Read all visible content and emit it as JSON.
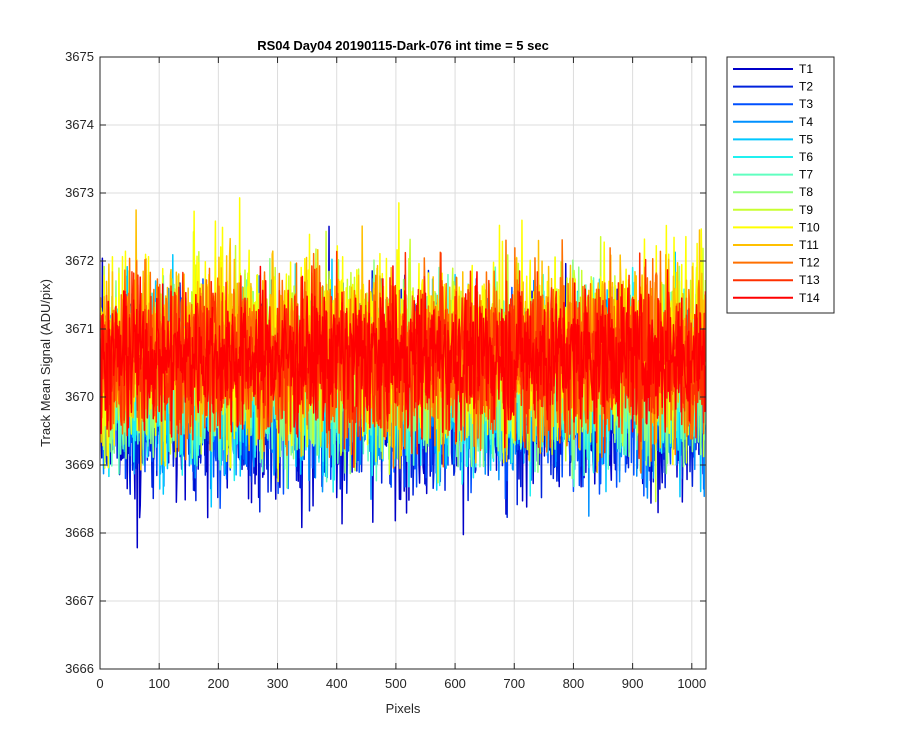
{
  "chart_data": {
    "type": "line",
    "title": "RS04 Day04 20190115-Dark-076 int time = 5 sec",
    "xlabel": "Pixels",
    "ylabel": "Track Mean Signal (ADU/pix)",
    "xlim": [
      0,
      1024
    ],
    "ylim": [
      3666,
      3675
    ],
    "xticks": [
      0,
      100,
      200,
      300,
      400,
      500,
      600,
      700,
      800,
      900,
      1000
    ],
    "yticks": [
      3666,
      3667,
      3668,
      3669,
      3670,
      3671,
      3672,
      3673,
      3674,
      3675
    ],
    "grid": true,
    "legend_position": "outside-right",
    "points_per_series": 1024,
    "series": [
      {
        "name": "T1",
        "color": "#0000c8",
        "mean": 3670.0,
        "spread": 0.95
      },
      {
        "name": "T2",
        "color": "#0022dc",
        "mean": 3670.05,
        "spread": 0.9
      },
      {
        "name": "T3",
        "color": "#0050ff",
        "mean": 3670.1,
        "spread": 0.85
      },
      {
        "name": "T4",
        "color": "#0090ff",
        "mean": 3670.15,
        "spread": 0.8
      },
      {
        "name": "T5",
        "color": "#00c8ff",
        "mean": 3670.2,
        "spread": 0.8
      },
      {
        "name": "T6",
        "color": "#20f0f0",
        "mean": 3670.25,
        "spread": 0.8
      },
      {
        "name": "T7",
        "color": "#60ffc0",
        "mean": 3670.3,
        "spread": 0.8
      },
      {
        "name": "T8",
        "color": "#90ff80",
        "mean": 3670.4,
        "spread": 0.85
      },
      {
        "name": "T9",
        "color": "#c8ff30",
        "mean": 3670.6,
        "spread": 0.9
      },
      {
        "name": "T10",
        "color": "#ffff00",
        "mean": 3670.8,
        "spread": 0.9
      },
      {
        "name": "T11",
        "color": "#ffc000",
        "mean": 3670.7,
        "spread": 0.85
      },
      {
        "name": "T12",
        "color": "#ff7000",
        "mean": 3670.6,
        "spread": 0.85
      },
      {
        "name": "T13",
        "color": "#ff3000",
        "mean": 3670.6,
        "spread": 0.8
      },
      {
        "name": "T14",
        "color": "#ff0000",
        "mean": 3670.6,
        "spread": 0.65
      }
    ]
  }
}
